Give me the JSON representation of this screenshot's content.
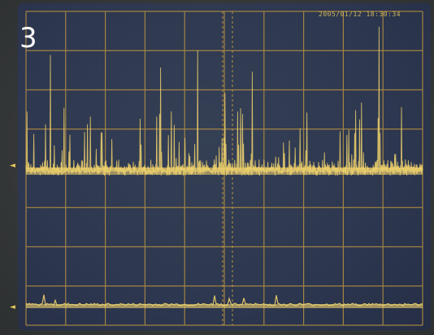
{
  "panel": {
    "label": "3"
  },
  "colors": {
    "trace": "#f2d46a",
    "grid": "#c89a3a",
    "screen": "#27314a",
    "bezel": "#36393a"
  },
  "scope": {
    "datetime": "2005/01/12 18:30:34"
  }
}
